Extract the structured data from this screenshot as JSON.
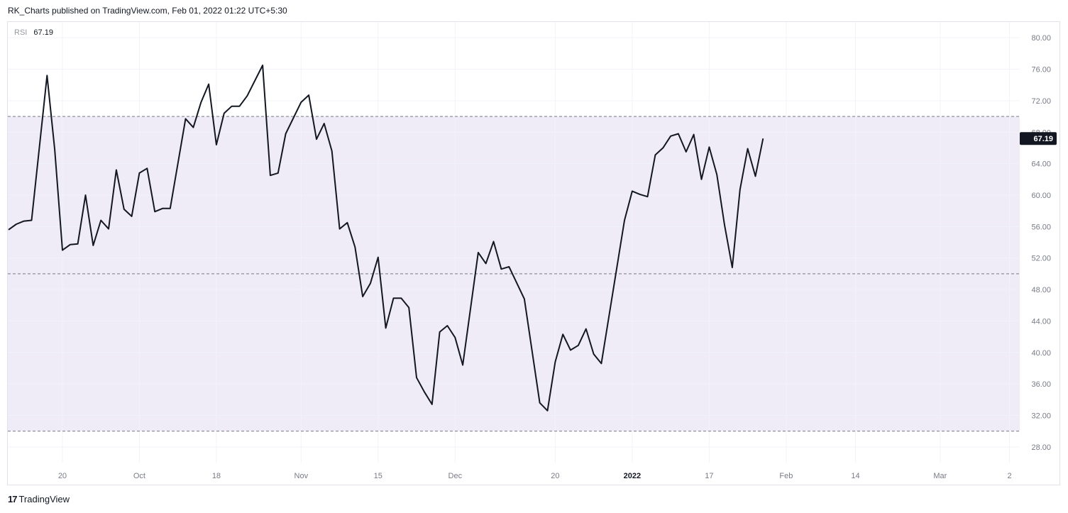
{
  "header": {
    "text": "RK_Charts published on TradingView.com, Feb 01, 2022 01:22 UTC+5:30"
  },
  "legend": {
    "indicator": "RSI",
    "value": "67.19"
  },
  "footer": {
    "brand": "TradingView",
    "logo": "tradingview-logo"
  },
  "colors": {
    "line": "#131722",
    "band": "#efebf7",
    "grid": "#f0f3fa",
    "dash": "#787b86",
    "tag_bg": "#131722"
  },
  "chart_data": {
    "type": "line",
    "title": "",
    "indicator": "RSI",
    "last_value": 67.19,
    "ylim": [
      26,
      82
    ],
    "y_ticks": [
      "80.00",
      "76.00",
      "72.00",
      "68.00",
      "64.00",
      "60.00",
      "56.00",
      "52.00",
      "48.00",
      "44.00",
      "40.00",
      "36.00",
      "32.00",
      "28.00"
    ],
    "x_range": [
      0,
      130
    ],
    "x_ticks": [
      {
        "label": "20",
        "x": 7,
        "bold": false
      },
      {
        "label": "Oct",
        "x": 17,
        "bold": false
      },
      {
        "label": "18",
        "x": 27,
        "bold": false
      },
      {
        "label": "Nov",
        "x": 38,
        "bold": false
      },
      {
        "label": "15",
        "x": 48,
        "bold": false
      },
      {
        "label": "Dec",
        "x": 58,
        "bold": false
      },
      {
        "label": "20",
        "x": 71,
        "bold": false
      },
      {
        "label": "2022",
        "x": 81,
        "bold": true
      },
      {
        "label": "17",
        "x": 91,
        "bold": false
      },
      {
        "label": "Feb",
        "x": 101,
        "bold": false
      },
      {
        "label": "14",
        "x": 110,
        "bold": false
      },
      {
        "label": "Mar",
        "x": 121,
        "bold": false
      },
      {
        "label": "2",
        "x": 130,
        "bold": false
      }
    ],
    "band": {
      "upper": 70,
      "middle": 50,
      "lower": 30
    },
    "grid": true,
    "series": [
      {
        "values": [
          [
            0,
            55.6
          ],
          [
            1,
            56.3
          ],
          [
            2,
            56.7
          ],
          [
            3,
            56.8
          ],
          [
            5,
            75.2
          ],
          [
            6,
            65.8
          ],
          [
            7,
            53.0
          ],
          [
            8,
            53.7
          ],
          [
            9,
            53.8
          ],
          [
            10,
            60.0
          ],
          [
            11,
            53.6
          ],
          [
            12,
            56.8
          ],
          [
            13,
            55.7
          ],
          [
            14,
            63.2
          ],
          [
            15,
            58.2
          ],
          [
            16,
            57.3
          ],
          [
            17,
            62.8
          ],
          [
            18,
            63.4
          ],
          [
            19,
            57.9
          ],
          [
            20,
            58.3
          ],
          [
            21,
            58.3
          ],
          [
            23,
            69.7
          ],
          [
            24,
            68.6
          ],
          [
            25,
            71.8
          ],
          [
            26,
            74.1
          ],
          [
            27,
            66.4
          ],
          [
            28,
            70.4
          ],
          [
            29,
            71.3
          ],
          [
            30,
            71.3
          ],
          [
            31,
            72.6
          ],
          [
            33,
            76.5
          ],
          [
            34,
            62.5
          ],
          [
            35,
            62.8
          ],
          [
            36,
            67.8
          ],
          [
            38,
            71.8
          ],
          [
            39,
            72.7
          ],
          [
            40,
            67.1
          ],
          [
            41,
            69.1
          ],
          [
            42,
            65.6
          ],
          [
            43,
            55.7
          ],
          [
            44,
            56.5
          ],
          [
            45,
            53.4
          ],
          [
            46,
            47.1
          ],
          [
            47,
            48.8
          ],
          [
            48,
            52.1
          ],
          [
            49,
            43.1
          ],
          [
            50,
            46.9
          ],
          [
            51,
            46.9
          ],
          [
            52,
            45.7
          ],
          [
            53,
            36.8
          ],
          [
            54,
            35.0
          ],
          [
            55,
            33.4
          ],
          [
            56,
            42.6
          ],
          [
            57,
            43.4
          ],
          [
            58,
            41.9
          ],
          [
            59,
            38.4
          ],
          [
            61,
            52.7
          ],
          [
            62,
            51.3
          ],
          [
            63,
            54.1
          ],
          [
            64,
            50.6
          ],
          [
            65,
            50.9
          ],
          [
            67,
            46.8
          ],
          [
            69,
            33.6
          ],
          [
            70,
            32.6
          ],
          [
            71,
            38.8
          ],
          [
            72,
            42.3
          ],
          [
            73,
            40.3
          ],
          [
            74,
            40.9
          ],
          [
            75,
            43.0
          ],
          [
            76,
            39.8
          ],
          [
            77,
            38.6
          ],
          [
            80,
            56.8
          ],
          [
            81,
            60.5
          ],
          [
            82,
            60.1
          ],
          [
            83,
            59.8
          ],
          [
            84,
            65.1
          ],
          [
            85,
            66.0
          ],
          [
            86,
            67.5
          ],
          [
            87,
            67.8
          ],
          [
            88,
            65.5
          ],
          [
            89,
            67.7
          ],
          [
            90,
            62.0
          ],
          [
            91,
            66.1
          ],
          [
            92,
            62.6
          ],
          [
            93,
            56.2
          ],
          [
            94,
            50.8
          ],
          [
            95,
            60.7
          ],
          [
            96,
            65.9
          ],
          [
            97,
            62.4
          ],
          [
            98,
            67.19
          ]
        ]
      }
    ]
  }
}
